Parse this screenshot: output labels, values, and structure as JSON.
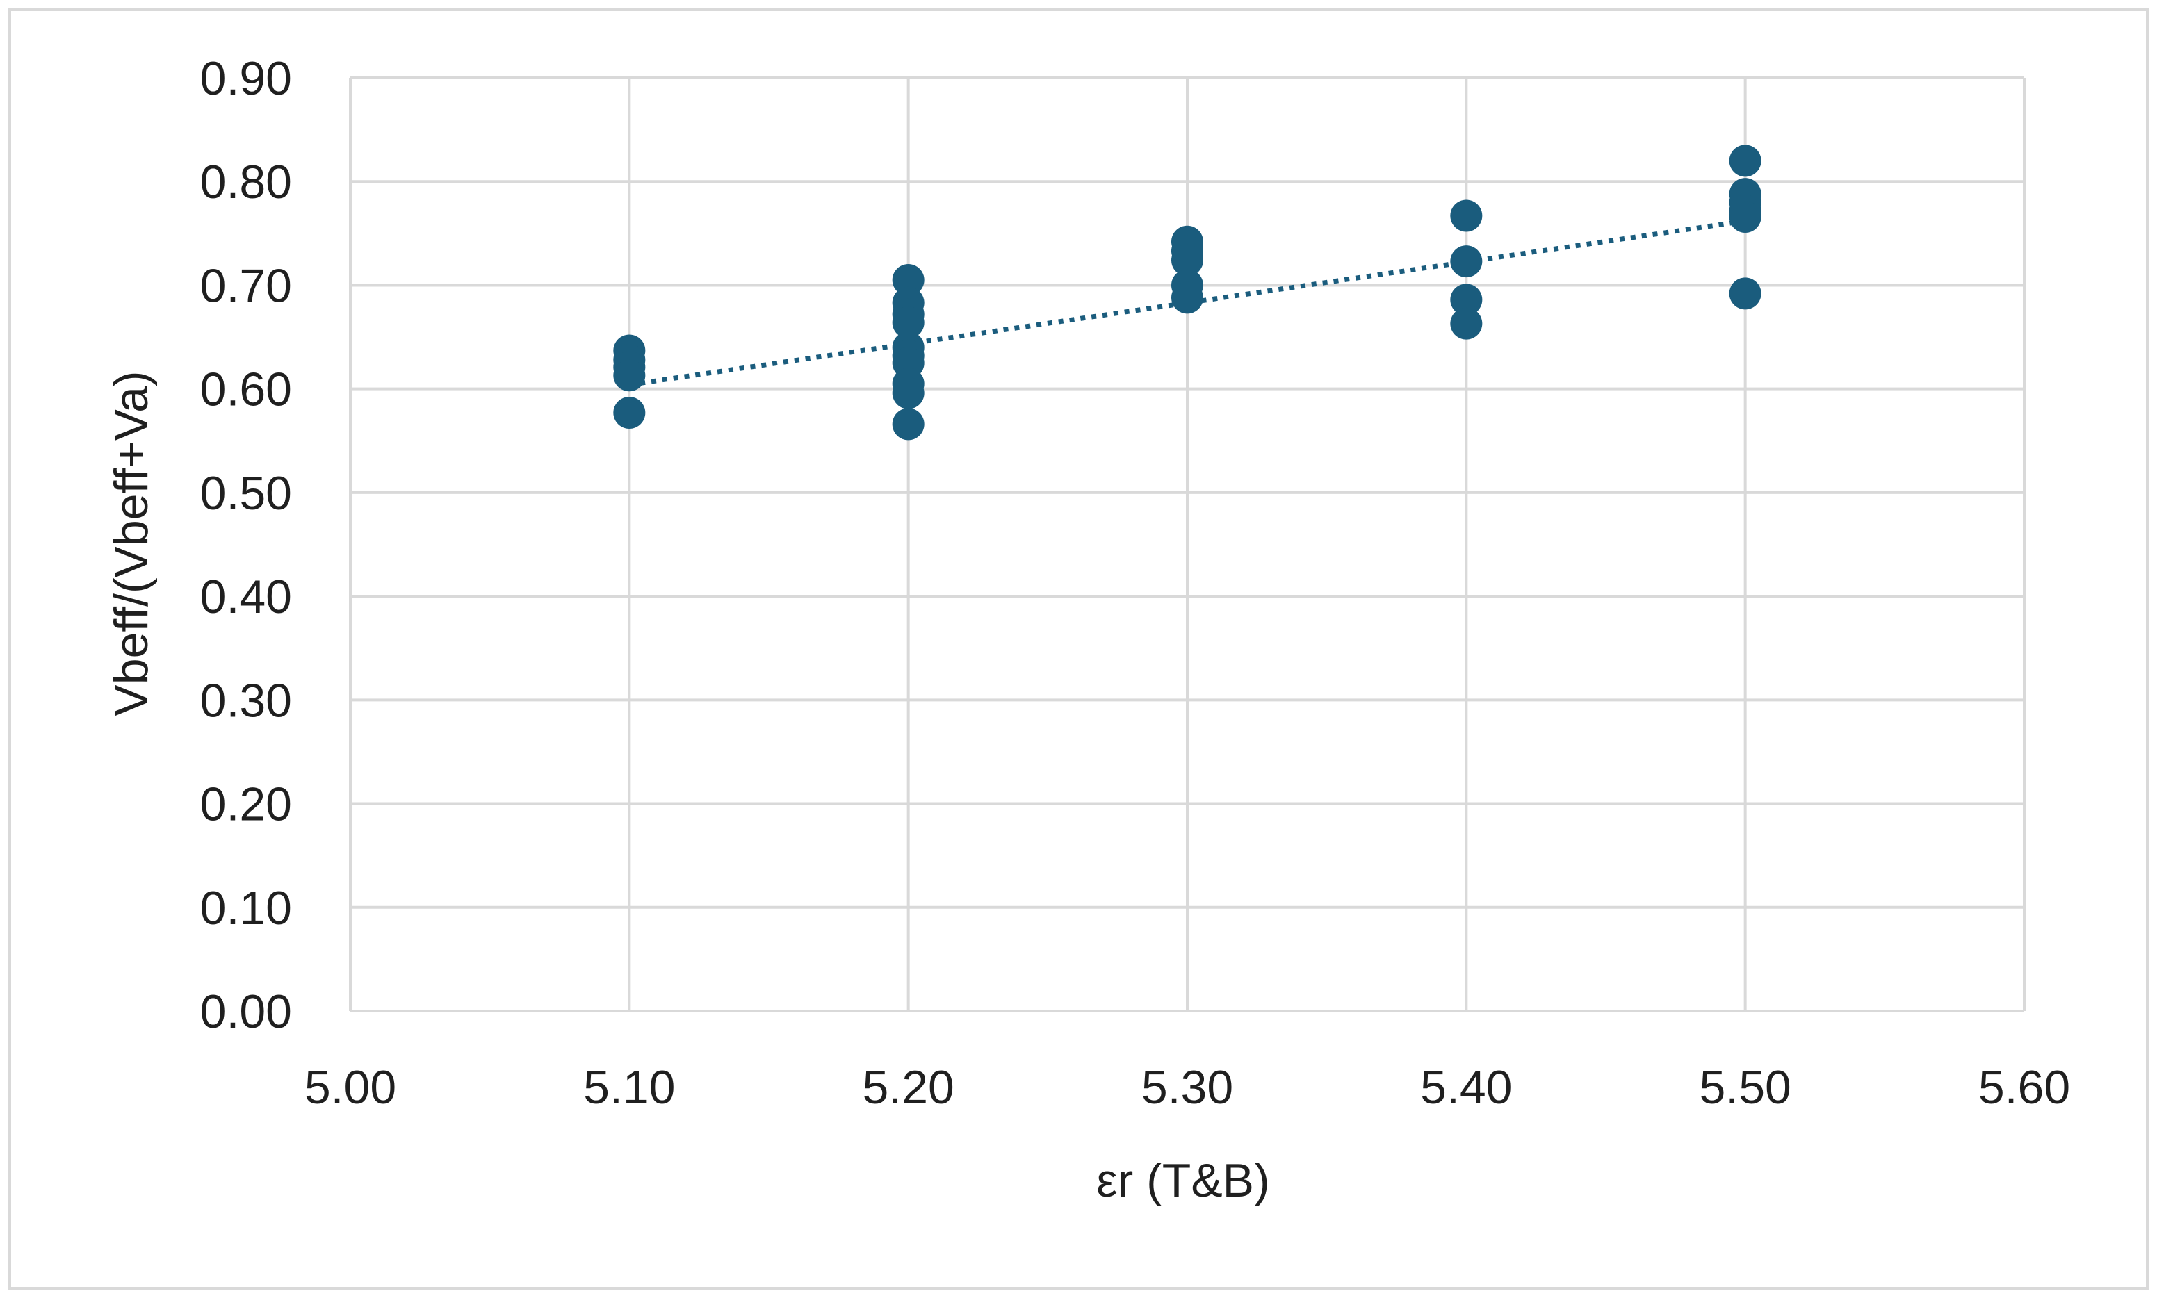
{
  "chart_data": {
    "type": "scatter",
    "title": "",
    "xlabel": "εr (T&B)",
    "ylabel": "Vbeff/(Vbeff+Va)",
    "xlim": [
      5.0,
      5.6
    ],
    "ylim": [
      0.0,
      0.9
    ],
    "x_ticks": [
      "5.00",
      "5.10",
      "5.20",
      "5.30",
      "5.40",
      "5.50",
      "5.60"
    ],
    "y_ticks": [
      "0.00",
      "0.10",
      "0.20",
      "0.30",
      "0.40",
      "0.50",
      "0.60",
      "0.70",
      "0.80",
      "0.90"
    ],
    "grid": true,
    "legend": "none",
    "marker_color": "#1a5c7d",
    "series": [
      {
        "points": [
          {
            "x": 5.1,
            "y": 0.637
          },
          {
            "x": 5.1,
            "y": 0.628
          },
          {
            "x": 5.1,
            "y": 0.621
          },
          {
            "x": 5.1,
            "y": 0.613
          },
          {
            "x": 5.1,
            "y": 0.577
          },
          {
            "x": 5.2,
            "y": 0.705
          },
          {
            "x": 5.2,
            "y": 0.683
          },
          {
            "x": 5.2,
            "y": 0.672
          },
          {
            "x": 5.2,
            "y": 0.664
          },
          {
            "x": 5.2,
            "y": 0.64
          },
          {
            "x": 5.2,
            "y": 0.632
          },
          {
            "x": 5.2,
            "y": 0.625
          },
          {
            "x": 5.2,
            "y": 0.605
          },
          {
            "x": 5.2,
            "y": 0.596
          },
          {
            "x": 5.2,
            "y": 0.566
          },
          {
            "x": 5.3,
            "y": 0.742
          },
          {
            "x": 5.3,
            "y": 0.733
          },
          {
            "x": 5.3,
            "y": 0.724
          },
          {
            "x": 5.3,
            "y": 0.7
          },
          {
            "x": 5.3,
            "y": 0.688
          },
          {
            "x": 5.4,
            "y": 0.767
          },
          {
            "x": 5.4,
            "y": 0.723
          },
          {
            "x": 5.4,
            "y": 0.686
          },
          {
            "x": 5.4,
            "y": 0.663
          },
          {
            "x": 5.5,
            "y": 0.82
          },
          {
            "x": 5.5,
            "y": 0.788
          },
          {
            "x": 5.5,
            "y": 0.78
          },
          {
            "x": 5.5,
            "y": 0.772
          },
          {
            "x": 5.5,
            "y": 0.766
          },
          {
            "x": 5.5,
            "y": 0.692
          }
        ]
      }
    ],
    "trendline": {
      "type": "linear",
      "style": "dotted",
      "color": "#1a5c7d",
      "x": [
        5.1,
        5.5
      ],
      "y": [
        0.604,
        0.762
      ]
    }
  }
}
